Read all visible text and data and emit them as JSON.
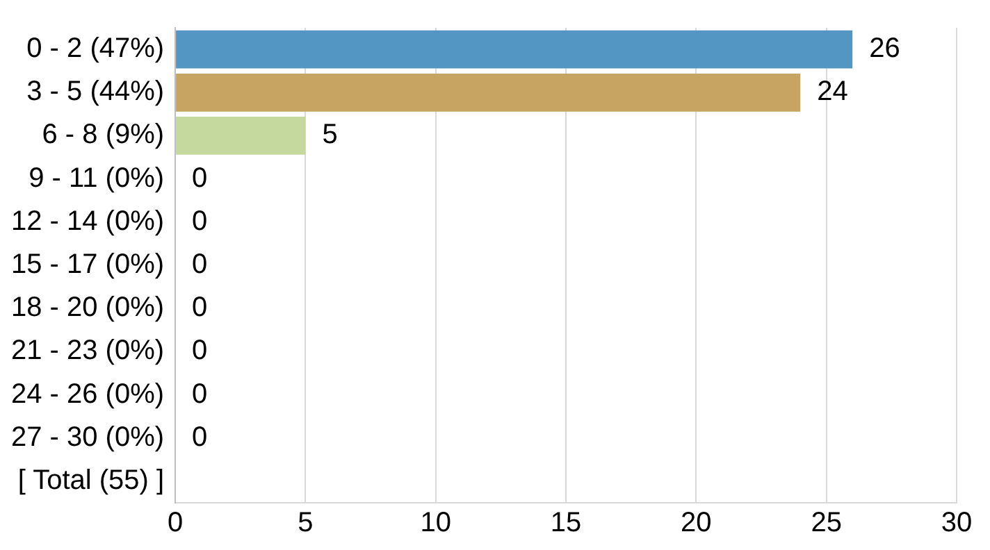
{
  "chart_data": {
    "type": "bar",
    "orientation": "horizontal",
    "categories": [
      "0 - 2 (47%)",
      "3 - 5 (44%)",
      "6 - 8 (9%)",
      "9 - 11 (0%)",
      "12 - 14 (0%)",
      "15 - 17 (0%)",
      "18 - 20 (0%)",
      "21 - 23 (0%)",
      "24 - 26 (0%)",
      "27 - 30 (0%)",
      "[ Total (55) ]"
    ],
    "values": [
      26,
      24,
      5,
      0,
      0,
      0,
      0,
      0,
      0,
      0,
      null
    ],
    "colors": [
      "#5395c3",
      "#c8a463",
      "#c5d89e",
      null,
      null,
      null,
      null,
      null,
      null,
      null,
      null
    ],
    "xlim": [
      0,
      30
    ],
    "xticks": [
      0,
      5,
      10,
      15,
      20,
      25,
      30
    ],
    "grid": "x",
    "data_labels": true,
    "legend": false
  }
}
